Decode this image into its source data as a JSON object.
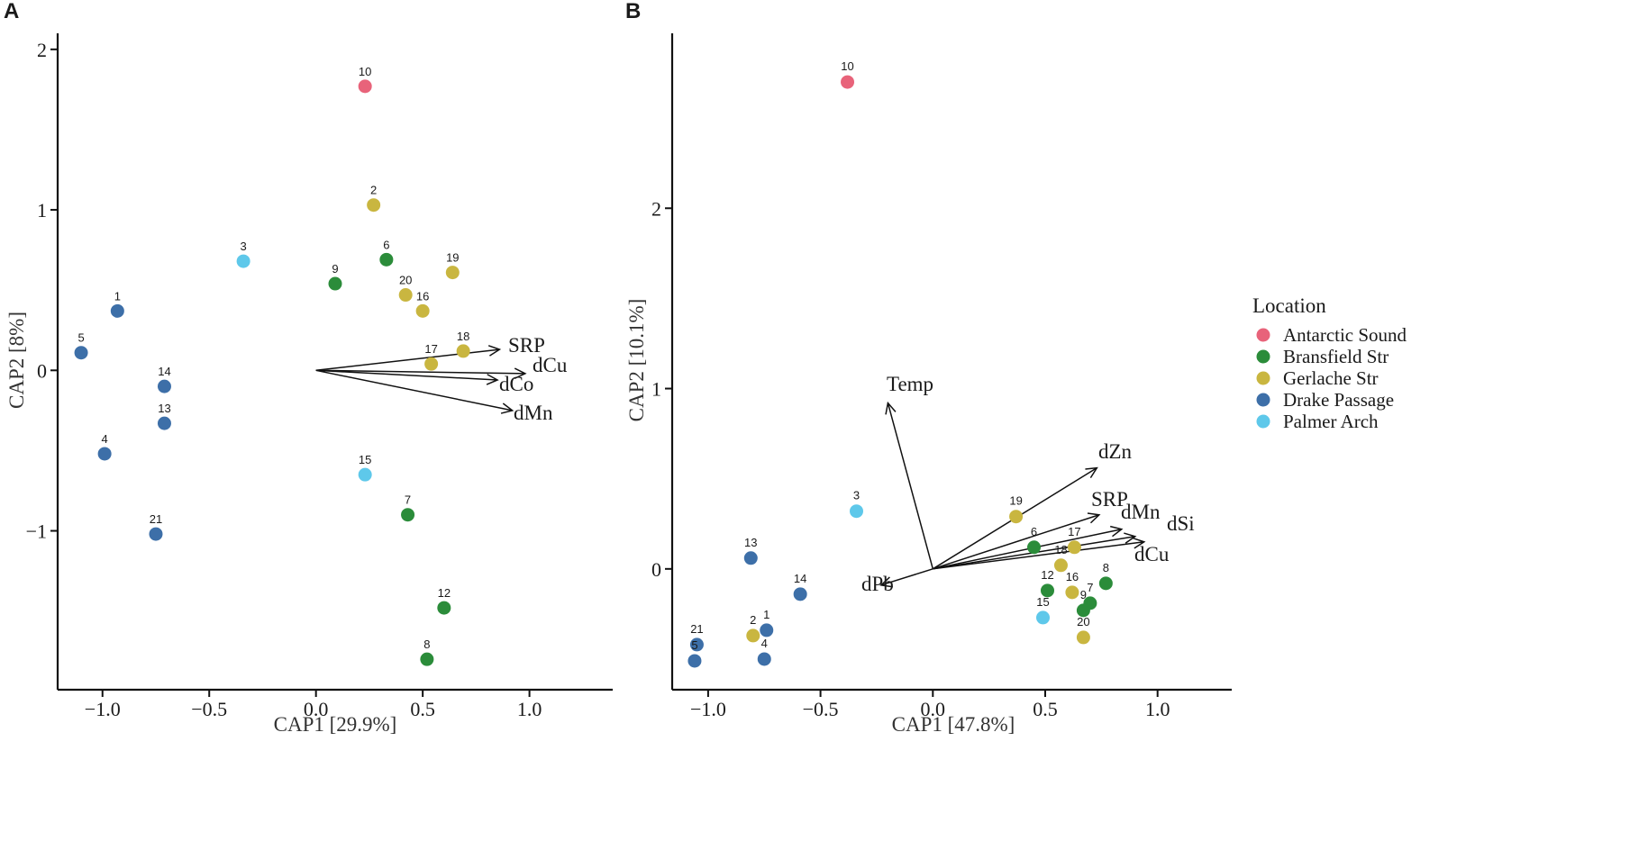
{
  "chart_data": [
    {
      "type": "scatter",
      "panel": "A",
      "xlabel": "CAP1   [29.9%]",
      "ylabel": "CAP2   [8%]",
      "xlim": [
        -1.21,
        1.39
      ],
      "ylim": [
        -1.99,
        2.1
      ],
      "xticks": [
        -1.0,
        -0.5,
        0.0,
        0.5,
        1.0
      ],
      "xtick_labels": [
        "−1.0",
        "−0.5",
        "0.0",
        "0.5",
        "1.0"
      ],
      "yticks": [
        -1,
        0,
        1,
        2
      ],
      "ytick_labels": [
        "−1",
        "0",
        "1",
        "2"
      ],
      "points": [
        {
          "label": "10",
          "location": "Antarctic Sound",
          "x": 0.23,
          "y": 1.77
        },
        {
          "label": "2",
          "location": "Gerlache Str",
          "x": 0.27,
          "y": 1.03
        },
        {
          "label": "6",
          "location": "Bransfield Str",
          "x": 0.33,
          "y": 0.69
        },
        {
          "label": "19",
          "location": "Gerlache Str",
          "x": 0.64,
          "y": 0.61
        },
        {
          "label": "3",
          "location": "Palmer Arch",
          "x": -0.34,
          "y": 0.68
        },
        {
          "label": "9",
          "location": "Bransfield Str",
          "x": 0.09,
          "y": 0.54
        },
        {
          "label": "20",
          "location": "Gerlache Str",
          "x": 0.42,
          "y": 0.47
        },
        {
          "label": "16",
          "location": "Gerlache Str",
          "x": 0.5,
          "y": 0.37
        },
        {
          "label": "1",
          "location": "Drake Passage",
          "x": -0.93,
          "y": 0.37
        },
        {
          "label": "5",
          "location": "Drake Passage",
          "x": -1.1,
          "y": 0.11
        },
        {
          "label": "18",
          "location": "Gerlache Str",
          "x": 0.69,
          "y": 0.12
        },
        {
          "label": "17",
          "location": "Gerlache Str",
          "x": 0.54,
          "y": 0.04
        },
        {
          "label": "14",
          "location": "Drake Passage",
          "x": -0.71,
          "y": -0.1
        },
        {
          "label": "13",
          "location": "Drake Passage",
          "x": -0.71,
          "y": -0.33
        },
        {
          "label": "4",
          "location": "Drake Passage",
          "x": -0.99,
          "y": -0.52
        },
        {
          "label": "15",
          "location": "Palmer Arch",
          "x": 0.23,
          "y": -0.65
        },
        {
          "label": "7",
          "location": "Bransfield Str",
          "x": 0.43,
          "y": -0.9
        },
        {
          "label": "21",
          "location": "Drake Passage",
          "x": -0.75,
          "y": -1.02
        },
        {
          "label": "12",
          "location": "Bransfield Str",
          "x": 0.6,
          "y": -1.48
        },
        {
          "label": "8",
          "location": "Bransfield Str",
          "x": 0.52,
          "y": -1.8
        }
      ],
      "vectors": [
        {
          "name": "SRP",
          "x": 0.86,
          "y": 0.13
        },
        {
          "name": "dCu",
          "x": 0.98,
          "y": -0.02
        },
        {
          "name": "dCo",
          "x": 0.85,
          "y": -0.06
        },
        {
          "name": "dMn",
          "x": 0.92,
          "y": -0.25
        }
      ]
    },
    {
      "type": "scatter",
      "panel": "B",
      "xlabel": "CAP1   [47.8%]",
      "ylabel": "CAP2   [10.1%]",
      "xlim": [
        -1.16,
        1.33
      ],
      "ylim": [
        -0.67,
        2.97
      ],
      "xticks": [
        -1.0,
        -0.5,
        0.0,
        0.5,
        1.0
      ],
      "xtick_labels": [
        "−1.0",
        "−0.5",
        "0.0",
        "0.5",
        "1.0"
      ],
      "yticks": [
        0,
        1,
        2
      ],
      "ytick_labels": [
        "0",
        "1",
        "2"
      ],
      "points": [
        {
          "label": "10",
          "location": "Antarctic Sound",
          "x": -0.38,
          "y": 2.7
        },
        {
          "label": "3",
          "location": "Palmer Arch",
          "x": -0.34,
          "y": 0.32
        },
        {
          "label": "19",
          "location": "Gerlache Str",
          "x": 0.37,
          "y": 0.29
        },
        {
          "label": "6",
          "location": "Bransfield Str",
          "x": 0.45,
          "y": 0.12
        },
        {
          "label": "17",
          "location": "Gerlache Str",
          "x": 0.63,
          "y": 0.12
        },
        {
          "label": "18",
          "location": "Gerlache Str",
          "x": 0.57,
          "y": 0.02
        },
        {
          "label": "13",
          "location": "Drake Passage",
          "x": -0.81,
          "y": 0.06
        },
        {
          "label": "14",
          "location": "Drake Passage",
          "x": -0.59,
          "y": -0.14
        },
        {
          "label": "12",
          "location": "Bransfield Str",
          "x": 0.51,
          "y": -0.12
        },
        {
          "label": "16",
          "location": "Gerlache Str",
          "x": 0.62,
          "y": -0.13
        },
        {
          "label": "8",
          "location": "Bransfield Str",
          "x": 0.77,
          "y": -0.08
        },
        {
          "label": "7",
          "location": "Bransfield Str",
          "x": 0.7,
          "y": -0.19
        },
        {
          "label": "9",
          "location": "Bransfield Str",
          "x": 0.67,
          "y": -0.23
        },
        {
          "label": "15",
          "location": "Palmer Arch",
          "x": 0.49,
          "y": -0.27
        },
        {
          "label": "20",
          "location": "Gerlache Str",
          "x": 0.67,
          "y": -0.38
        },
        {
          "label": "1",
          "location": "Drake Passage",
          "x": -0.74,
          "y": -0.34
        },
        {
          "label": "2",
          "location": "Gerlache Str",
          "x": -0.8,
          "y": -0.37
        },
        {
          "label": "21",
          "location": "Drake Passage",
          "x": -1.05,
          "y": -0.42
        },
        {
          "label": "5",
          "location": "Drake Passage",
          "x": -1.06,
          "y": -0.51
        },
        {
          "label": "4",
          "location": "Drake Passage",
          "x": -0.75,
          "y": -0.5
        }
      ],
      "vectors": [
        {
          "name": "Temp",
          "x": -0.2,
          "y": 0.92
        },
        {
          "name": "dZn",
          "x": 0.73,
          "y": 0.56
        },
        {
          "name": "SRP",
          "x": 0.74,
          "y": 0.3
        },
        {
          "name": "dMn",
          "x": 0.84,
          "y": 0.22
        },
        {
          "name": "dSi",
          "x": 0.9,
          "y": 0.18
        },
        {
          "name": "dCu",
          "x": 0.94,
          "y": 0.15
        },
        {
          "name": "dPb",
          "x": -0.23,
          "y": -0.09
        }
      ]
    }
  ],
  "legend": {
    "title": "Location",
    "position": "right",
    "entries": [
      {
        "name": "Antarctic Sound",
        "color": "#e8637a"
      },
      {
        "name": "Bransfield Str",
        "color": "#2b8c3a"
      },
      {
        "name": "Gerlache Str",
        "color": "#c9b640"
      },
      {
        "name": "Drake Passage",
        "color": "#3d6fa8"
      },
      {
        "name": "Palmer Arch",
        "color": "#5ec8ea"
      }
    ]
  }
}
